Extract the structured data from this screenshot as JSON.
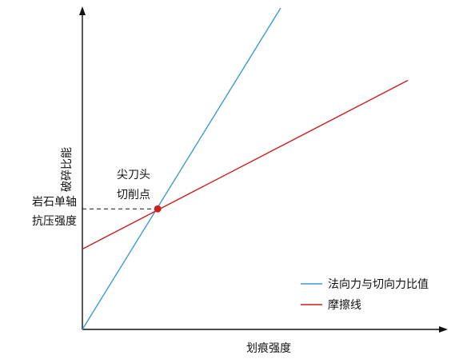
{
  "chart_data": {
    "type": "line",
    "xlabel": "划痕强度",
    "ylabel": "破碎比能",
    "x_ticks": [],
    "y_ticks": [],
    "xlim": [
      0,
      100
    ],
    "ylim": [
      0,
      100
    ],
    "grid": false,
    "legend_position": "bottom-right",
    "series": [
      {
        "name": "法向力与切向力比值",
        "color": "#3a9bd5",
        "x": [
          0,
          54.5
        ],
        "y": [
          0,
          100
        ]
      },
      {
        "name": "摩擦线",
        "color": "#cc1f1f",
        "x": [
          0,
          89.5
        ],
        "y": [
          25,
          77.5
        ]
      }
    ],
    "annotations": {
      "point_label_line1": "尖刀头",
      "point_label_line2": "切削点",
      "y_value_label_line1": "岩石单轴",
      "y_value_label_line2": "抗压强度",
      "point": {
        "x": 20.7,
        "y": 37.5,
        "color": "#cc1f1f"
      }
    }
  }
}
